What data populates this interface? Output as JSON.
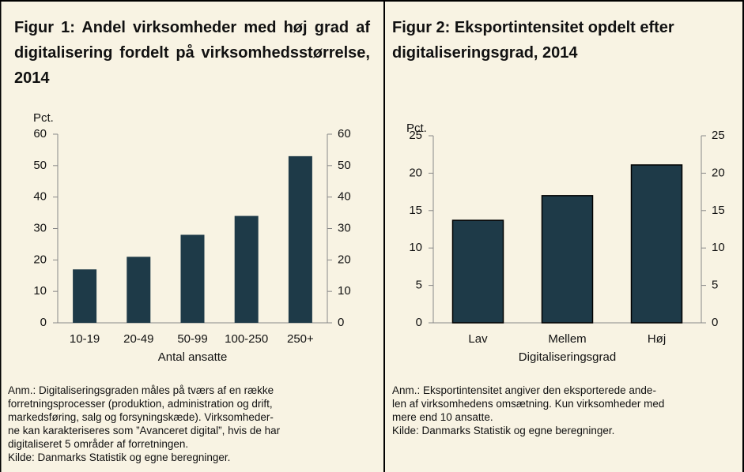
{
  "chart_data": [
    {
      "type": "bar",
      "title": "Figur 1: Andel virksomheder med høj grad af digitalisering fordelt på virksom­hedsstørrelse, 2014",
      "y_unit": "Pct.",
      "x_label": "Antal ansatte",
      "categories": [
        "10-19",
        "20-49",
        "50-99",
        "100-250",
        "250+"
      ],
      "values": [
        17,
        21,
        28,
        34,
        53
      ],
      "color": "#1e3a48",
      "ylim": [
        0,
        60
      ],
      "yticks": [
        0,
        10,
        20,
        30,
        40,
        50,
        60
      ],
      "y2lim": [
        0,
        60
      ],
      "y2ticks": [
        0,
        10,
        20,
        30,
        40,
        50,
        60
      ],
      "note": [
        "Anm.: Digitaliseringsgraden måles på tværs af en række",
        "forretningsprocesser (produktion, administration og drift,",
        "markedsføring, salg og forsyningskæde). Virksomheder-",
        "ne kan karakteriseres som ”Avanceret digital”, hvis de har",
        "digitaliseret 5 områder af forretningen."
      ],
      "source": "Kilde: Danmarks Statistik og egne beregninger."
    },
    {
      "type": "bar",
      "title": "Figur 2: Eksportintensitet opdelt efter digitaliseringsgrad, 2014",
      "y_unit": "Pct.",
      "x_label": "Digitaliseringsgrad",
      "categories": [
        "Lav",
        "Mellem",
        "Høj"
      ],
      "values": [
        13.7,
        17,
        21.1
      ],
      "color": "#1e3a48",
      "ylim": [
        0,
        25
      ],
      "yticks": [
        0,
        5,
        10,
        15,
        20,
        25
      ],
      "y2lim": [
        0,
        25
      ],
      "y2ticks": [
        0,
        5,
        10,
        15,
        20,
        25
      ],
      "note": [
        "Anm.: Eksportintensitet angiver den eksporterede ande-",
        "len af virksomhedens omsætning. Kun virksomheder med",
        "mere end 10 ansatte."
      ],
      "source": "Kilde: Danmarks Statistik og egne beregninger."
    }
  ]
}
